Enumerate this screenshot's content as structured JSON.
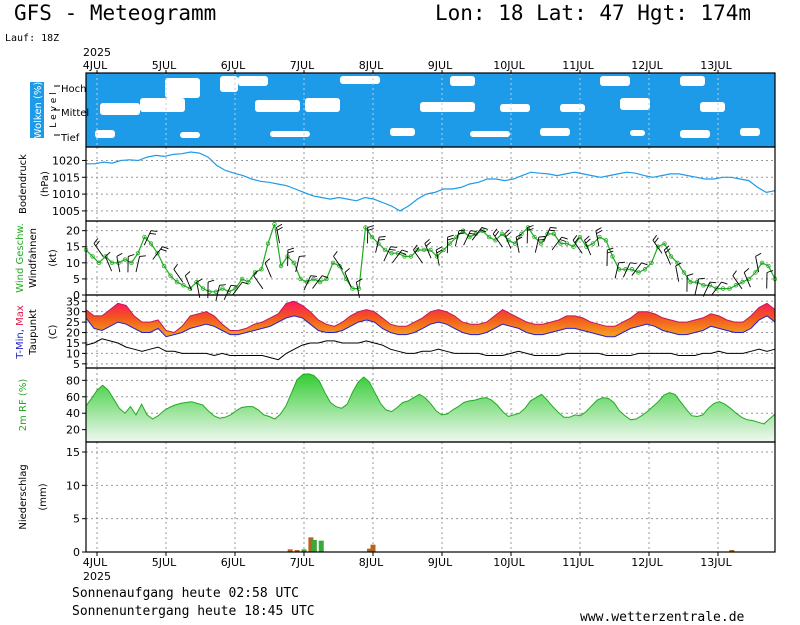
{
  "header": {
    "title": "GFS - Meteogramm",
    "location": "Lon: 18 Lat: 47 Hgt: 174m",
    "run": "Lauf: 18Z"
  },
  "footer": {
    "sunrise": "Sonnenaufgang heute 02:58 UTC",
    "sunset": "Sonnenuntergang heute 18:45 UTC",
    "source": "www.wetterzentrale.de"
  },
  "chart_data": {
    "type": "line",
    "year": "2025",
    "days": [
      "4JUL",
      "5JUL",
      "6JUL",
      "7JUL",
      "8JUL",
      "9JUL",
      "10JUL",
      "11JUL",
      "12JUL",
      "13JUL"
    ],
    "colors": {
      "cloud": "#1e9be8",
      "pressure": "#1e9be8",
      "wind": "#22aa22",
      "rh": "#22aa22",
      "tmax": "#e8154a",
      "tmin": "#2222cc",
      "dew": "#000000",
      "precip_rain": "#b5651d",
      "precip_green": "#3aa83a"
    },
    "panels": [
      {
        "id": "clouds",
        "ylabel": "Wolken (%)",
        "ylabel2": "L e v e l",
        "levels": [
          "Hoch",
          "Mittel",
          "Tief"
        ]
      },
      {
        "id": "pressure",
        "ylabel": "Bodendruck",
        "ylabel2": "(hPa)",
        "ticks": [
          1020,
          1015,
          1010,
          1005
        ],
        "ylim": [
          1002,
          1024
        ],
        "values": [
          1019,
          1019,
          1019.5,
          1019.2,
          1020,
          1020.2,
          1020,
          1021,
          1021.5,
          1021.2,
          1021.8,
          1022,
          1022.5,
          1022.2,
          1021,
          1018.5,
          1017,
          1016.2,
          1015.5,
          1014.5,
          1013.8,
          1013.5,
          1013,
          1012.5,
          1011.5,
          1010.5,
          1009.5,
          1009,
          1008.5,
          1009,
          1008.5,
          1008,
          1009,
          1008.5,
          1007.5,
          1006.5,
          1005,
          1006.5,
          1008.5,
          1010,
          1010.5,
          1011.5,
          1011.5,
          1012,
          1013,
          1013.5,
          1014.5,
          1014.5,
          1014,
          1014.5,
          1015.5,
          1016.5,
          1016.2,
          1016,
          1015.5,
          1016,
          1016.5,
          1016,
          1015.5,
          1015,
          1015.5,
          1016,
          1016.5,
          1016.2,
          1015.5,
          1015,
          1015.5,
          1016,
          1016,
          1015.5,
          1015,
          1014.5,
          1014.5,
          1015,
          1015,
          1014.5,
          1014,
          1012,
          1010.5,
          1011
        ]
      },
      {
        "id": "wind",
        "ylabel": "Wind Geschw.",
        "ylabel2": "Windfahnen",
        "ylabel3": "(kt)",
        "ticks": [
          20,
          15,
          10,
          5,
          0
        ],
        "ylim": [
          0,
          23
        ],
        "values": [
          14,
          12,
          10,
          12,
          10,
          10,
          11,
          10,
          13,
          18,
          16,
          13,
          9,
          6,
          4,
          3,
          2,
          4,
          2,
          1,
          1,
          2,
          1,
          2,
          5,
          4,
          7,
          8,
          16,
          22,
          9,
          12,
          10,
          5,
          4,
          5,
          4,
          5,
          10,
          9,
          5,
          2,
          2,
          21,
          18,
          16,
          14,
          13,
          13,
          12,
          12,
          14,
          14,
          14,
          12,
          14,
          16,
          18,
          20,
          18,
          19,
          20,
          18,
          17,
          19,
          17,
          16,
          19,
          21,
          18,
          16,
          19,
          19,
          16,
          16,
          15,
          18,
          15,
          16,
          18,
          17,
          12,
          8,
          8,
          8,
          7,
          8,
          10,
          15,
          16,
          12,
          10,
          7,
          4,
          4,
          3,
          3,
          2,
          2,
          2,
          3,
          4,
          5,
          7,
          10,
          9,
          5
        ]
      },
      {
        "id": "temp",
        "ylabel": "T-Min, Max",
        "ylabel2": "Taupunkt",
        "ylabel3": "(C)",
        "ticks": [
          35,
          30,
          25,
          20,
          15,
          10,
          5
        ],
        "ylim": [
          3,
          38
        ],
        "tmax": [
          31,
          28,
          28,
          31,
          34,
          33,
          28,
          25,
          25,
          26,
          21,
          20,
          23,
          28,
          29,
          30,
          28,
          24,
          21,
          21,
          22,
          24,
          25,
          27,
          29,
          34,
          35,
          33,
          30,
          26,
          24,
          23,
          25,
          28,
          30,
          31,
          30,
          27,
          24,
          23,
          23,
          25,
          27,
          30,
          31,
          30,
          28,
          25,
          24,
          24,
          25,
          28,
          31,
          29,
          27,
          25,
          24,
          24,
          25,
          26,
          28,
          28,
          27,
          25,
          24,
          23,
          23,
          25,
          27,
          30,
          30,
          29,
          27,
          26,
          25,
          25,
          26,
          27,
          29,
          28,
          26,
          25,
          25,
          28,
          32,
          34,
          31
        ],
        "tmin": [
          27,
          22,
          21,
          23,
          25,
          24,
          22,
          20,
          20,
          22,
          18,
          19,
          20,
          22,
          23,
          24,
          23,
          21,
          19,
          19,
          20,
          21,
          22,
          23,
          25,
          27,
          28,
          27,
          24,
          21,
          20,
          20,
          21,
          23,
          25,
          26,
          25,
          22,
          20,
          19,
          19,
          20,
          22,
          24,
          25,
          24,
          22,
          20,
          19,
          19,
          20,
          22,
          24,
          23,
          22,
          20,
          19,
          19,
          20,
          21,
          22,
          22,
          21,
          20,
          19,
          18,
          18,
          20,
          22,
          23,
          24,
          23,
          21,
          20,
          19,
          19,
          20,
          21,
          23,
          22,
          21,
          20,
          20,
          22,
          26,
          28,
          25
        ],
        "dew": [
          14,
          15,
          17,
          16,
          15,
          13,
          12,
          11,
          12,
          13,
          11,
          11,
          10,
          10,
          10,
          10,
          9,
          10,
          9,
          9,
          9,
          9,
          9,
          8,
          7,
          10,
          12,
          14,
          15,
          15,
          16,
          16,
          15,
          15,
          15,
          16,
          15,
          14,
          12,
          11,
          10,
          10,
          11,
          11,
          12,
          11,
          10,
          10,
          10,
          10,
          9,
          9,
          9,
          10,
          11,
          10,
          9,
          9,
          9,
          9,
          10,
          10,
          10,
          10,
          10,
          9,
          9,
          9,
          9,
          10,
          10,
          10,
          10,
          10,
          9,
          9,
          9,
          10,
          10,
          11,
          10,
          10,
          10,
          11,
          12,
          11,
          12
        ]
      },
      {
        "id": "rh",
        "ylabel": "2m RF (%)",
        "ticks": [
          80,
          60,
          40,
          20
        ],
        "ylim": [
          5,
          95
        ],
        "values": [
          49,
          58,
          68,
          74,
          68,
          57,
          46,
          40,
          48,
          38,
          51,
          38,
          33,
          37,
          43,
          47,
          50,
          52,
          53,
          54,
          52,
          50,
          43,
          37,
          34,
          35,
          38,
          43,
          47,
          48,
          48,
          44,
          38,
          36,
          33,
          39,
          49,
          65,
          81,
          87,
          88,
          86,
          79,
          65,
          53,
          48,
          46,
          51,
          66,
          78,
          84,
          78,
          65,
          52,
          44,
          42,
          47,
          53,
          55,
          59,
          63,
          59,
          52,
          43,
          38,
          39,
          44,
          48,
          53,
          55,
          56,
          58,
          59,
          56,
          50,
          42,
          36,
          38,
          40,
          46,
          55,
          59,
          63,
          56,
          48,
          41,
          35,
          35,
          38,
          37,
          42,
          49,
          56,
          59,
          58,
          53,
          43,
          37,
          32,
          33,
          37,
          42,
          48,
          54,
          62,
          65,
          63,
          54,
          45,
          37,
          36,
          38,
          46,
          52,
          54,
          51,
          46,
          40,
          35,
          32,
          31,
          29,
          27,
          33,
          39
        ]
      },
      {
        "id": "precip",
        "ylabel": "Niederschlag",
        "ylabel2": "(mm)",
        "ticks": [
          15,
          10,
          5,
          0
        ],
        "ylim": [
          0,
          16.5
        ],
        "bars": [
          {
            "x": 2.8,
            "value": 0.4,
            "kind": "rain"
          },
          {
            "x": 2.9,
            "value": 0.3,
            "kind": "rain"
          },
          {
            "x": 3.0,
            "value": 0.4,
            "kind": "green"
          },
          {
            "x": 3.1,
            "value": 2.2,
            "kind": "rain"
          },
          {
            "x": 3.15,
            "value": 1.8,
            "kind": "green"
          },
          {
            "x": 3.25,
            "value": 1.7,
            "kind": "green"
          },
          {
            "x": 3.95,
            "value": 0.5,
            "kind": "rain"
          },
          {
            "x": 4.0,
            "value": 1.1,
            "kind": "rain"
          },
          {
            "x": 9.2,
            "value": 0.3,
            "kind": "rain"
          }
        ]
      }
    ]
  }
}
